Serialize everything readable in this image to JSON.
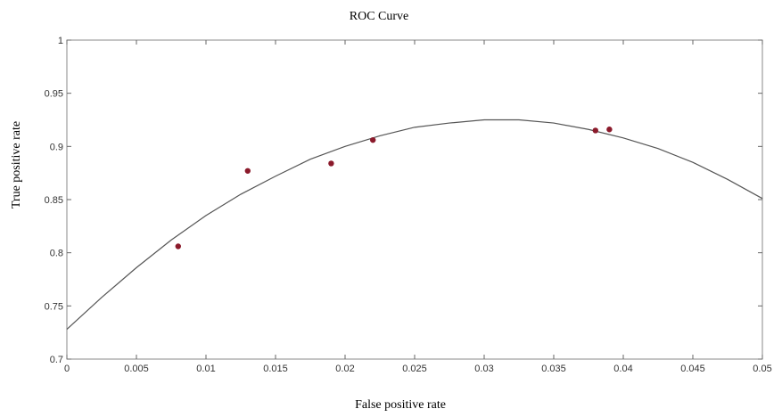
{
  "chart_data": {
    "type": "scatter",
    "title": "ROC Curve",
    "x_label": "False positive rate",
    "y_label": "True positive rate",
    "xlim": [
      0,
      0.05
    ],
    "ylim": [
      0.7,
      1
    ],
    "xticks": [
      0,
      0.005,
      0.01,
      0.015,
      0.02,
      0.025,
      0.03,
      0.035,
      0.04,
      0.045,
      0.05
    ],
    "yticks": [
      0.7,
      0.75,
      0.8,
      0.85,
      0.9,
      0.95,
      1
    ],
    "series": [
      {
        "type": "line",
        "color": "#555555",
        "x": [
          0,
          0.0025,
          0.005,
          0.0075,
          0.01,
          0.0125,
          0.015,
          0.0175,
          0.02,
          0.0225,
          0.025,
          0.0275,
          0.03,
          0.0325,
          0.035,
          0.0375,
          0.04,
          0.0425,
          0.045,
          0.0475,
          0.05
        ],
        "values": [
          0.728,
          0.758,
          0.786,
          0.812,
          0.835,
          0.855,
          0.872,
          0.888,
          0.9,
          0.91,
          0.918,
          0.922,
          0.925,
          0.925,
          0.922,
          0.916,
          0.908,
          0.898,
          0.885,
          0.869,
          0.851
        ]
      },
      {
        "type": "scatter",
        "color": "#8b1a2b",
        "x": [
          0.008,
          0.013,
          0.019,
          0.022,
          0.038,
          0.039
        ],
        "values": [
          0.806,
          0.877,
          0.884,
          0.906,
          0.915,
          0.916
        ]
      }
    ]
  }
}
